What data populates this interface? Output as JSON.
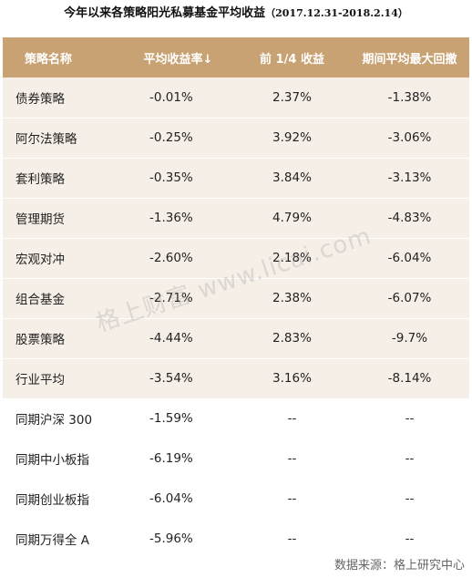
{
  "title": {
    "main": "今年以来各策略阳光私募基金平均收益",
    "range": "（2017.12.31-2018.2.14）"
  },
  "table": {
    "headers": [
      "策略名称",
      "平均收益率↓",
      "前 1/4 收益",
      "期间平均最大回撤"
    ],
    "rows": [
      {
        "name": "债券策略",
        "avg_return": "-0.01%",
        "top_quarter": "2.37%",
        "max_drawdown": "-1.38%",
        "type": "strategy"
      },
      {
        "name": "阿尔法策略",
        "avg_return": "-0.25%",
        "top_quarter": "3.92%",
        "max_drawdown": "-3.06%",
        "type": "strategy"
      },
      {
        "name": "套利策略",
        "avg_return": "-0.35%",
        "top_quarter": "3.84%",
        "max_drawdown": "-3.13%",
        "type": "strategy"
      },
      {
        "name": "管理期货",
        "avg_return": "-1.36%",
        "top_quarter": "4.79%",
        "max_drawdown": "-4.83%",
        "type": "strategy"
      },
      {
        "name": "宏观对冲",
        "avg_return": "-2.60%",
        "top_quarter": "2.18%",
        "max_drawdown": "-6.04%",
        "type": "strategy"
      },
      {
        "name": "组合基金",
        "avg_return": "-2.71%",
        "top_quarter": "2.38%",
        "max_drawdown": "-6.07%",
        "type": "strategy"
      },
      {
        "name": "股票策略",
        "avg_return": "-4.44%",
        "top_quarter": "2.83%",
        "max_drawdown": "-9.7%",
        "type": "strategy"
      },
      {
        "name": "行业平均",
        "avg_return": "-3.54%",
        "top_quarter": "3.16%",
        "max_drawdown": "-8.14%",
        "type": "strategy"
      },
      {
        "name": "同期沪深 300",
        "avg_return": "-1.59%",
        "top_quarter": "--",
        "max_drawdown": "--",
        "type": "index"
      },
      {
        "name": "同期中小板指",
        "avg_return": "-6.19%",
        "top_quarter": "--",
        "max_drawdown": "--",
        "type": "index"
      },
      {
        "name": "同期创业板指",
        "avg_return": "-6.04%",
        "top_quarter": "--",
        "max_drawdown": "--",
        "type": "index"
      },
      {
        "name": "同期万得全 A",
        "avg_return": "-5.96%",
        "top_quarter": "--",
        "max_drawdown": "--",
        "type": "index"
      }
    ]
  },
  "watermark": "格上财富  www.licai.com",
  "source": "数据来源：格上研究中心",
  "colors": {
    "header_bg": "#c8a273",
    "strategy_row_bg": "#f6efe7",
    "index_row_bg": "#ffffff"
  }
}
